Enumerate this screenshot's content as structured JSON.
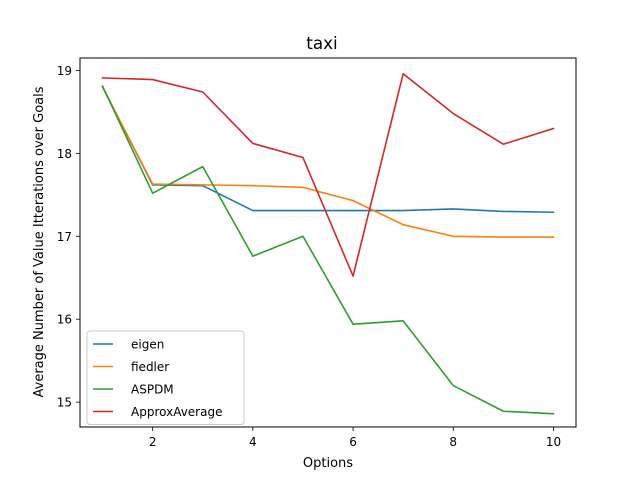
{
  "chart_data": {
    "type": "line",
    "title": "taxi",
    "xlabel": "Options",
    "ylabel": "Average Number of Value Itterations over Goals",
    "xlim": [
      0.55,
      10.45
    ],
    "ylim": [
      14.7,
      19.15
    ],
    "x_ticks": [
      2,
      4,
      6,
      8,
      10
    ],
    "y_ticks": [
      15,
      16,
      17,
      18,
      19
    ],
    "grid": false,
    "legend_position": "lower-left",
    "x": [
      1,
      2,
      3,
      4,
      5,
      6,
      7,
      8,
      9,
      10
    ],
    "series": [
      {
        "name": "eigen",
        "color": "#1f77b4",
        "values": [
          18.8,
          17.62,
          17.61,
          17.31,
          17.31,
          17.31,
          17.31,
          17.33,
          17.3,
          17.29
        ]
      },
      {
        "name": "fiedler",
        "color": "#ff7f0e",
        "values": [
          18.8,
          17.63,
          17.62,
          17.61,
          17.59,
          17.43,
          17.14,
          17.0,
          16.99,
          16.99
        ]
      },
      {
        "name": "ASPDM",
        "color": "#2ca02c",
        "values": [
          18.81,
          17.52,
          17.84,
          16.76,
          17.0,
          15.94,
          15.98,
          15.2,
          14.89,
          14.86
        ]
      },
      {
        "name": "ApproxAverage",
        "color": "#d62728",
        "values": [
          18.91,
          18.89,
          18.74,
          18.12,
          17.95,
          16.52,
          18.96,
          18.48,
          18.11,
          18.3
        ]
      }
    ]
  }
}
